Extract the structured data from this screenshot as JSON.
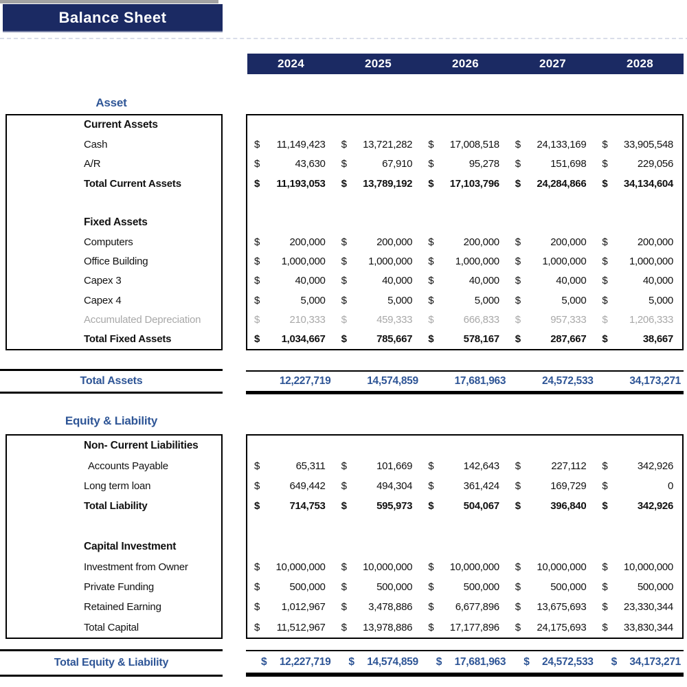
{
  "title": "Balance Sheet",
  "cur": "$",
  "years": [
    "2024",
    "2025",
    "2026",
    "2027",
    "2028"
  ],
  "colors": {
    "header_navy": "#1b2a63",
    "accent_blue": "#2e5596",
    "muted_gray": "#a8a8a8"
  },
  "asset": {
    "heading": "Asset",
    "current_assets_header": "Current Assets",
    "cash": {
      "label": "Cash",
      "v": [
        "11,149,423",
        "13,721,282",
        "17,008,518",
        "24,133,169",
        "33,905,548"
      ]
    },
    "ar": {
      "label": "A/R",
      "v": [
        "43,630",
        "67,910",
        "95,278",
        "151,698",
        "229,056"
      ]
    },
    "total_current": {
      "label": "Total Current Assets",
      "v": [
        "11,193,053",
        "13,789,192",
        "17,103,796",
        "24,284,866",
        "34,134,604"
      ]
    },
    "fixed_assets_header": "Fixed Assets",
    "computers": {
      "label": "Computers",
      "v": [
        "200,000",
        "200,000",
        "200,000",
        "200,000",
        "200,000"
      ]
    },
    "office_building": {
      "label": "Office Building",
      "v": [
        "1,000,000",
        "1,000,000",
        "1,000,000",
        "1,000,000",
        "1,000,000"
      ]
    },
    "capex3": {
      "label": "Capex 3",
      "v": [
        "40,000",
        "40,000",
        "40,000",
        "40,000",
        "40,000"
      ]
    },
    "capex4": {
      "label": "Capex 4",
      "v": [
        "5,000",
        "5,000",
        "5,000",
        "5,000",
        "5,000"
      ]
    },
    "accumulated_depreciation": {
      "label": "Accumulated Depreciation",
      "v": [
        "210,333",
        "459,333",
        "666,833",
        "957,333",
        "1,206,333"
      ]
    },
    "total_fixed": {
      "label": "Total Fixed Assets",
      "v": [
        "1,034,667",
        "785,667",
        "578,167",
        "287,667",
        "38,667"
      ]
    },
    "total_assets": {
      "label": "Total Assets",
      "v": [
        "12,227,719",
        "14,574,859",
        "17,681,963",
        "24,572,533",
        "34,173,271"
      ]
    }
  },
  "equity_liability": {
    "heading": "Equity & Liability",
    "noncurrent_header": "Non- Current Liabilities",
    "accounts_payable": {
      "label": "Accounts Payable",
      "v": [
        "65,311",
        "101,669",
        "142,643",
        "227,112",
        "342,926"
      ]
    },
    "long_term_loan": {
      "label": "Long term loan",
      "v": [
        "649,442",
        "494,304",
        "361,424",
        "169,729",
        "0"
      ]
    },
    "total_liability": {
      "label": "Total Liability",
      "v": [
        "714,753",
        "595,973",
        "504,067",
        "396,840",
        "342,926"
      ]
    },
    "capital_header": "Capital Investment",
    "investment_from_owner": {
      "label": "Investment from Owner",
      "v": [
        "10,000,000",
        "10,000,000",
        "10,000,000",
        "10,000,000",
        "10,000,000"
      ]
    },
    "private_funding": {
      "label": "Private Funding",
      "v": [
        "500,000",
        "500,000",
        "500,000",
        "500,000",
        "500,000"
      ]
    },
    "retained_earning": {
      "label": "Retained Earning",
      "v": [
        "1,012,967",
        "3,478,886",
        "6,677,896",
        "13,675,693",
        "23,330,344"
      ]
    },
    "total_capital": {
      "label": "Total Capital",
      "v": [
        "11,512,967",
        "13,978,886",
        "17,177,896",
        "24,175,693",
        "33,830,344"
      ]
    },
    "total": {
      "label": "Total Equity & Liability",
      "v": [
        "12,227,719",
        "14,574,859",
        "17,681,963",
        "24,572,533",
        "34,173,271"
      ]
    }
  }
}
